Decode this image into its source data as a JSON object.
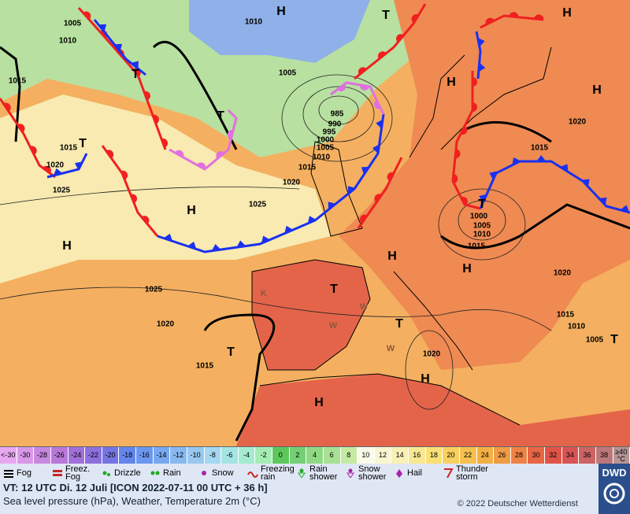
{
  "map": {
    "labels": [
      "H",
      "H",
      "T",
      1005,
      1010,
      1010,
      1015,
      "T",
      1005,
      "H",
      "H",
      "T",
      985,
      990,
      995,
      1000,
      1005,
      1010,
      1015,
      1015,
      1020,
      1025,
      "T",
      1020,
      "H",
      1025,
      1020,
      1015,
      1000,
      1005,
      1010,
      1015,
      "T",
      "H",
      "H",
      1020,
      "H",
      1025,
      "T",
      1020,
      "T",
      1015,
      1010,
      1005,
      "T",
      "T",
      1020,
      "H",
      1015,
      "H",
      "K",
      "W",
      "W",
      "W"
    ]
  },
  "temperature_scale": {
    "cells": [
      {
        "label": "<-30",
        "color": "#e8a8f0"
      },
      {
        "label": -30,
        "color": "#d898e8"
      },
      {
        "label": -28,
        "color": "#c888e0"
      },
      {
        "label": -26,
        "color": "#b878d8"
      },
      {
        "label": -24,
        "color": "#a070d8"
      },
      {
        "label": -22,
        "color": "#8c70dc"
      },
      {
        "label": -20,
        "color": "#7474e4"
      },
      {
        "label": -18,
        "color": "#6486ec"
      },
      {
        "label": -16,
        "color": "#6a98f0"
      },
      {
        "label": -14,
        "color": "#78a8f0"
      },
      {
        "label": -12,
        "color": "#88b8f0"
      },
      {
        "label": -10,
        "color": "#98c8f0"
      },
      {
        "label": -8,
        "color": "#a4d8f0"
      },
      {
        "label": -6,
        "color": "#a4e4e4"
      },
      {
        "label": -4,
        "color": "#a4ecd0"
      },
      {
        "label": -2,
        "color": "#a4ecb4"
      },
      {
        "label": 0,
        "color": "#5cc85c"
      },
      {
        "label": 2,
        "color": "#74d074"
      },
      {
        "label": 4,
        "color": "#90d884"
      },
      {
        "label": 6,
        "color": "#a8e094"
      },
      {
        "label": 8,
        "color": "#c4eaa4"
      },
      {
        "label": 10,
        "color": "#fafae8"
      },
      {
        "label": 12,
        "color": "#f8f6d0"
      },
      {
        "label": 14,
        "color": "#f8f0b4"
      },
      {
        "label": 16,
        "color": "#f8e894"
      },
      {
        "label": 18,
        "color": "#f8e074"
      },
      {
        "label": 20,
        "color": "#f8d060"
      },
      {
        "label": 22,
        "color": "#f6c050"
      },
      {
        "label": 24,
        "color": "#f2b044"
      },
      {
        "label": 26,
        "color": "#f09c44"
      },
      {
        "label": 28,
        "color": "#ee8244"
      },
      {
        "label": 30,
        "color": "#e86644"
      },
      {
        "label": 32,
        "color": "#e05448"
      },
      {
        "label": 34,
        "color": "#d85454"
      },
      {
        "label": 36,
        "color": "#cc6464"
      },
      {
        "label": 38,
        "color": "#bc7878"
      },
      {
        "label": "≥40 °C",
        "color": "#b49494"
      }
    ]
  },
  "legend": [
    "Fog",
    "Freez. Fog",
    "Drizzle",
    "Rain",
    "Snow",
    "Freezing rain",
    "Rain shower",
    "Snow shower",
    "Hail",
    "Thunder storm"
  ],
  "footer": {
    "valid_time": "VT: 12 UTC Di.  12 Juli [ICON 2022-07-11  00 UTC + 36 h]",
    "description": "Sea level pressure (hPa), Weather, Temperature 2m (°C)",
    "copyright": "© 2022 Deutscher Wetterdienst",
    "logo": "DWD"
  }
}
